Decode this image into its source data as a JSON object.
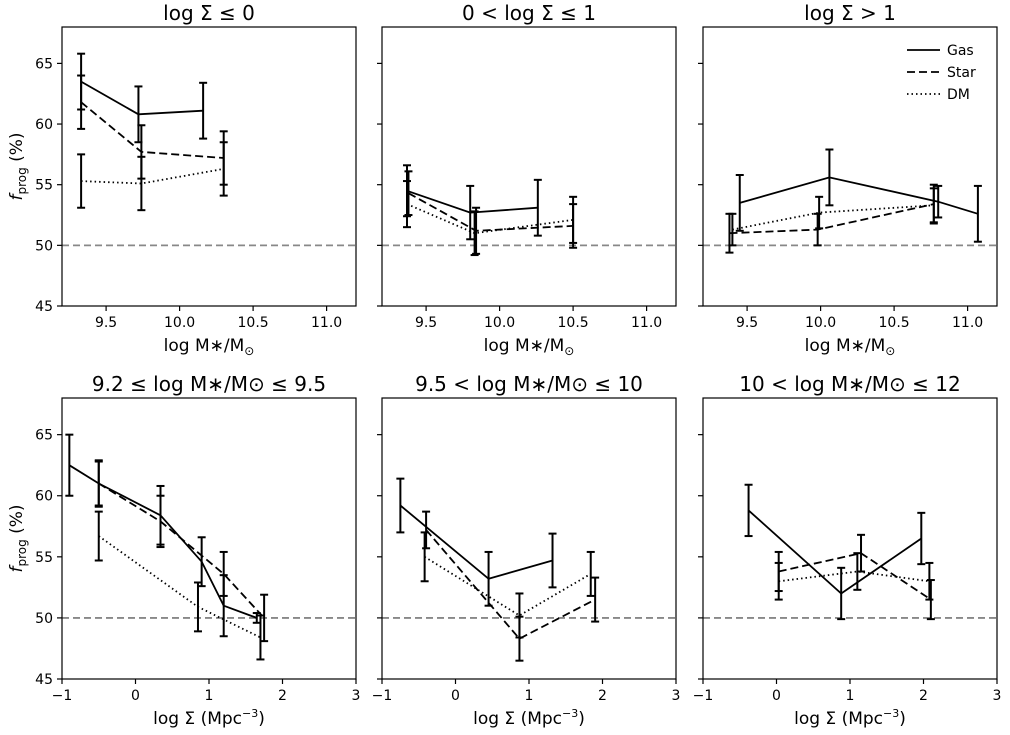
{
  "legend": {
    "position": "top-right",
    "entries": [
      {
        "name": "Gas",
        "style": "solid"
      },
      {
        "name": "Star",
        "style": "dashed"
      },
      {
        "name": "DM",
        "style": "dotted"
      }
    ]
  },
  "chart_data": [
    {
      "type": "line",
      "title": "log Σ ≤ 0",
      "xlabel": "log M∗/M⊙",
      "ylabel": "fprog (%)",
      "xlim": [
        9.2,
        11.2
      ],
      "ylim": [
        45,
        68
      ],
      "xticks": [
        "9.5",
        "10.0",
        "10.5",
        "11.0"
      ],
      "yticks": [
        "45",
        "50",
        "55",
        "60",
        "65"
      ],
      "reference_line": 50,
      "series": [
        {
          "name": "Gas",
          "style": "solid",
          "x": [
            9.33,
            9.72,
            10.16
          ],
          "y": [
            63.5,
            60.8,
            61.1
          ],
          "err": [
            2.3,
            2.3,
            2.3
          ]
        },
        {
          "name": "Star",
          "style": "dashed",
          "x": [
            9.33,
            9.74,
            10.3
          ],
          "y": [
            61.8,
            57.7,
            57.2
          ],
          "err": [
            2.2,
            2.2,
            2.2
          ]
        },
        {
          "name": "DM",
          "style": "dotted",
          "x": [
            9.33,
            9.74,
            10.3
          ],
          "y": [
            55.3,
            55.1,
            56.3
          ],
          "err": [
            2.2,
            2.2,
            2.2
          ]
        }
      ]
    },
    {
      "type": "line",
      "title": "0 < log Σ ≤ 1",
      "xlabel": "log M∗/M⊙",
      "ylabel": "",
      "xlim": [
        9.2,
        11.2
      ],
      "ylim": [
        45,
        68
      ],
      "xticks": [
        "9.5",
        "10.0",
        "10.5",
        "11.0"
      ],
      "yticks": [],
      "reference_line": 50,
      "series": [
        {
          "name": "Gas",
          "style": "solid",
          "x": [
            9.37,
            9.8,
            10.26
          ],
          "y": [
            54.5,
            52.7,
            53.1
          ],
          "err": [
            2.1,
            2.2,
            2.3
          ]
        },
        {
          "name": "Star",
          "style": "dashed",
          "x": [
            9.38,
            9.84,
            10.5
          ],
          "y": [
            54.3,
            51.2,
            51.6
          ],
          "err": [
            1.8,
            1.9,
            1.8
          ]
        },
        {
          "name": "DM",
          "style": "dotted",
          "x": [
            9.37,
            9.83,
            10.5
          ],
          "y": [
            53.4,
            51.0,
            52.1
          ],
          "err": [
            1.9,
            1.8,
            1.9
          ]
        }
      ]
    },
    {
      "type": "line",
      "title": "log Σ > 1",
      "xlabel": "log M∗/M⊙",
      "ylabel": "",
      "xlim": [
        9.2,
        11.2
      ],
      "ylim": [
        45,
        68
      ],
      "xticks": [
        "9.5",
        "10.0",
        "10.5",
        "11.0"
      ],
      "yticks": [],
      "reference_line": 50,
      "series": [
        {
          "name": "Gas",
          "style": "solid",
          "x": [
            9.45,
            10.06,
            10.8,
            11.07
          ],
          "y": [
            53.5,
            55.6,
            53.6,
            52.6
          ],
          "err": [
            2.3,
            2.3,
            1.3,
            2.3
          ]
        },
        {
          "name": "Star",
          "style": "dashed",
          "x": [
            9.38,
            9.98,
            10.77
          ],
          "y": [
            51.0,
            51.3,
            53.4
          ],
          "err": [
            1.6,
            1.3,
            1.6
          ]
        },
        {
          "name": "DM",
          "style": "dotted",
          "x": [
            9.4,
            9.99,
            10.77
          ],
          "y": [
            51.3,
            52.7,
            53.3
          ],
          "err": [
            1.3,
            1.3,
            1.4
          ]
        }
      ]
    },
    {
      "type": "line",
      "title": "9.2 ≤ log M∗/M⊙ ≤ 9.5",
      "xlabel": "log Σ (Mpc−3)",
      "ylabel": "fprog (%)",
      "xlim": [
        -1,
        3
      ],
      "ylim": [
        45,
        68
      ],
      "xticks": [
        "−1",
        "0",
        "1",
        "2",
        "3"
      ],
      "yticks": [
        "45",
        "50",
        "55",
        "60",
        "65"
      ],
      "reference_line": 50,
      "series": [
        {
          "name": "Gas",
          "style": "solid",
          "x": [
            -0.9,
            -0.5,
            0.34,
            0.9,
            1.2,
            1.65
          ],
          "y": [
            62.5,
            61.0,
            58.4,
            54.6,
            51.0,
            50.0
          ],
          "err": [
            2.5,
            1.9,
            2.4,
            2.0,
            2.5,
            0.4
          ]
        },
        {
          "name": "Star",
          "style": "dashed",
          "x": [
            -0.5,
            0.34,
            1.2,
            1.75
          ],
          "y": [
            61.0,
            57.9,
            53.6,
            50.0
          ],
          "err": [
            1.8,
            2.1,
            1.8,
            1.9
          ]
        },
        {
          "name": "DM",
          "style": "dotted",
          "x": [
            -0.5,
            0.85,
            1.7
          ],
          "y": [
            56.7,
            50.9,
            48.4
          ],
          "err": [
            2.0,
            2.0,
            1.8
          ]
        }
      ]
    },
    {
      "type": "line",
      "title": "9.5 < log M∗/M⊙ ≤ 10",
      "xlabel": "log Σ (Mpc−3)",
      "ylabel": "",
      "xlim": [
        -1,
        3
      ],
      "ylim": [
        45,
        68
      ],
      "xticks": [
        "−1",
        "0",
        "1",
        "2",
        "3"
      ],
      "yticks": [],
      "reference_line": 50,
      "series": [
        {
          "name": "Gas",
          "style": "solid",
          "x": [
            -0.75,
            0.45,
            1.32
          ],
          "y": [
            59.2,
            53.2,
            54.7
          ],
          "err": [
            2.2,
            2.2,
            2.2
          ]
        },
        {
          "name": "Star",
          "style": "dashed",
          "x": [
            -0.4,
            0.87,
            1.9
          ],
          "y": [
            57.2,
            48.3,
            51.5
          ],
          "err": [
            1.5,
            1.8,
            1.8
          ]
        },
        {
          "name": "DM",
          "style": "dotted",
          "x": [
            -0.42,
            0.87,
            1.84
          ],
          "y": [
            55.0,
            50.2,
            53.6
          ],
          "err": [
            2.0,
            1.8,
            1.8
          ]
        }
      ]
    },
    {
      "type": "line",
      "title": "10 < log M∗/M⊙ ≤ 12",
      "xlabel": "log Σ (Mpc−3)",
      "ylabel": "",
      "xlim": [
        -1,
        3
      ],
      "ylim": [
        45,
        68
      ],
      "xticks": [
        "−1",
        "0",
        "1",
        "2",
        "3"
      ],
      "yticks": [],
      "reference_line": 50,
      "series": [
        {
          "name": "Gas",
          "style": "solid",
          "x": [
            -0.38,
            0.88,
            1.97
          ],
          "y": [
            58.8,
            52.0,
            56.5
          ],
          "err": [
            2.1,
            2.1,
            2.1
          ]
        },
        {
          "name": "Star",
          "style": "dashed",
          "x": [
            0.03,
            1.15,
            2.1
          ],
          "y": [
            53.8,
            55.3,
            51.5
          ],
          "err": [
            1.6,
            1.5,
            1.6
          ]
        },
        {
          "name": "DM",
          "style": "dotted",
          "x": [
            0.03,
            1.1,
            2.08
          ],
          "y": [
            53.0,
            53.8,
            53.0
          ],
          "err": [
            1.5,
            1.5,
            1.5
          ]
        }
      ]
    }
  ]
}
